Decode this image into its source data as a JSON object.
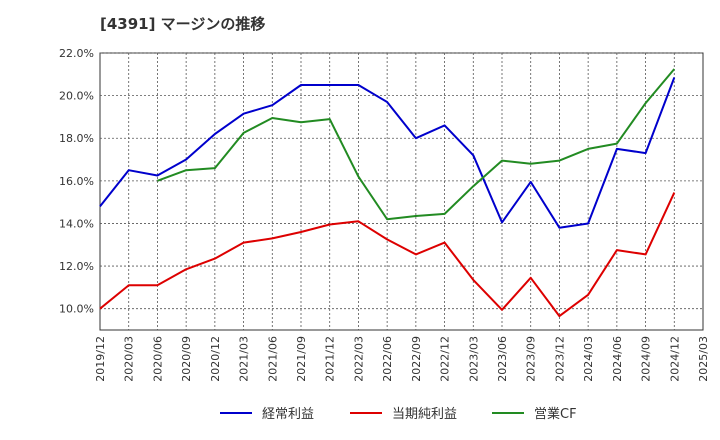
{
  "chart_data": {
    "type": "line",
    "title": "[4391]  マージンの推移",
    "xlabel": "",
    "ylabel": "",
    "ylim": [
      9.0,
      22.0
    ],
    "yticks": [
      "22.0%",
      "20.0%",
      "18.0%",
      "16.0%",
      "14.0%",
      "12.0%",
      "10.0%"
    ],
    "ytick_values": [
      22,
      20,
      18,
      16,
      14,
      12,
      10
    ],
    "categories": [
      "2019/12",
      "2020/03",
      "2020/06",
      "2020/09",
      "2020/12",
      "2021/03",
      "2021/06",
      "2021/09",
      "2021/12",
      "2022/03",
      "2022/06",
      "2022/09",
      "2022/12",
      "2023/03",
      "2023/06",
      "2023/09",
      "2023/12",
      "2024/03",
      "2024/06",
      "2024/09",
      "2024/12",
      "2025/03"
    ],
    "grid": true,
    "legend_position": "bottom",
    "series": [
      {
        "name": "経常利益",
        "color": "#0000cc",
        "values": [
          14.8,
          16.5,
          16.25,
          17.0,
          18.2,
          19.15,
          19.55,
          20.5,
          20.5,
          20.5,
          19.7,
          18.0,
          18.6,
          17.2,
          14.05,
          15.95,
          13.8,
          14.0,
          17.5,
          17.3,
          20.85,
          null
        ]
      },
      {
        "name": "当期純利益",
        "color": "#dd0000",
        "values": [
          10.0,
          11.1,
          11.1,
          11.85,
          12.35,
          13.1,
          13.3,
          13.6,
          13.95,
          14.1,
          13.25,
          12.55,
          13.1,
          11.35,
          9.95,
          11.45,
          9.65,
          10.65,
          12.75,
          12.55,
          15.45,
          null
        ]
      },
      {
        "name": "営業CF",
        "color": "#228b22",
        "values": [
          null,
          null,
          16.0,
          16.5,
          16.6,
          18.25,
          18.95,
          18.75,
          18.9,
          16.2,
          14.2,
          14.35,
          14.45,
          15.75,
          16.95,
          16.8,
          16.95,
          17.5,
          17.75,
          19.65,
          21.25,
          null
        ]
      }
    ]
  }
}
